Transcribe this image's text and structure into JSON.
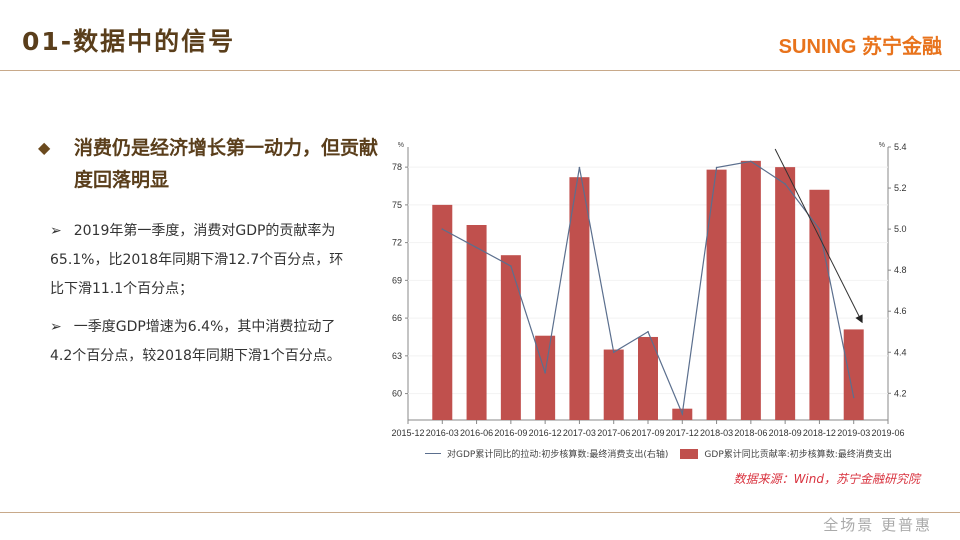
{
  "header": {
    "title": "01-数据中的信号",
    "logo": "SUNING 苏宁金融"
  },
  "main": {
    "bullet": "消费仍是经济增长第一动力，但贡献度回落明显",
    "paragraphs": [
      "2019年第一季度，消费对GDP的贡献率为65.1%，比2018年同期下滑12.7个百分点，环比下滑11.1个百分点；",
      "一季度GDP增速为6.4%，其中消费拉动了4.2个百分点，较2018年同期下滑1个百分点。"
    ],
    "arrow_glyph": "➢"
  },
  "chart_data": {
    "type": "bar",
    "x_ticks": [
      "2015-12",
      "2016-03",
      "2016-06",
      "2016-09",
      "2016-12",
      "2017-03",
      "2017-06",
      "2017-09",
      "2017-12",
      "2018-03",
      "2018-06",
      "2018-09",
      "2018-12",
      "2019-03",
      "2019-06"
    ],
    "categories": [
      "2016-03",
      "2016-06",
      "2016-09",
      "2016-12",
      "2017-03",
      "2017-06",
      "2017-09",
      "2017-12",
      "2018-03",
      "2018-06",
      "2018-09",
      "2018-12",
      "2019-03"
    ],
    "series": [
      {
        "name": "GDP累计同比贡献率:初步核算数:最终消费支出",
        "type": "bar",
        "axis": "left",
        "color": "#c0504d",
        "values": [
          75.0,
          73.4,
          71.0,
          64.6,
          77.2,
          63.5,
          64.5,
          58.8,
          77.8,
          78.5,
          78.0,
          76.2,
          65.1
        ]
      },
      {
        "name": "对GDP累计同比的拉动:初步核算数:最终消费支出(右轴)",
        "type": "line",
        "axis": "right",
        "color": "#5b6f8e",
        "values": [
          5.0,
          4.91,
          4.82,
          4.3,
          5.3,
          4.4,
          4.5,
          4.1,
          5.3,
          5.33,
          5.22,
          5.0,
          4.18
        ]
      }
    ],
    "left_axis": {
      "unit": "%",
      "ticks": [
        60,
        63,
        66,
        69,
        72,
        75,
        78
      ],
      "range": [
        57.9,
        79.6
      ]
    },
    "right_axis": {
      "unit": "%",
      "ticks": [
        4.2,
        4.4,
        4.6,
        4.8,
        5.0,
        5.2,
        5.4
      ],
      "range": [
        4.07,
        5.4
      ]
    },
    "annotation": "downward trend arrow from 2018-09 to 2019-03",
    "source": "数据来源：Wind，苏宁金融研究院"
  },
  "footer": {
    "slogan": "全场景 更普惠"
  }
}
